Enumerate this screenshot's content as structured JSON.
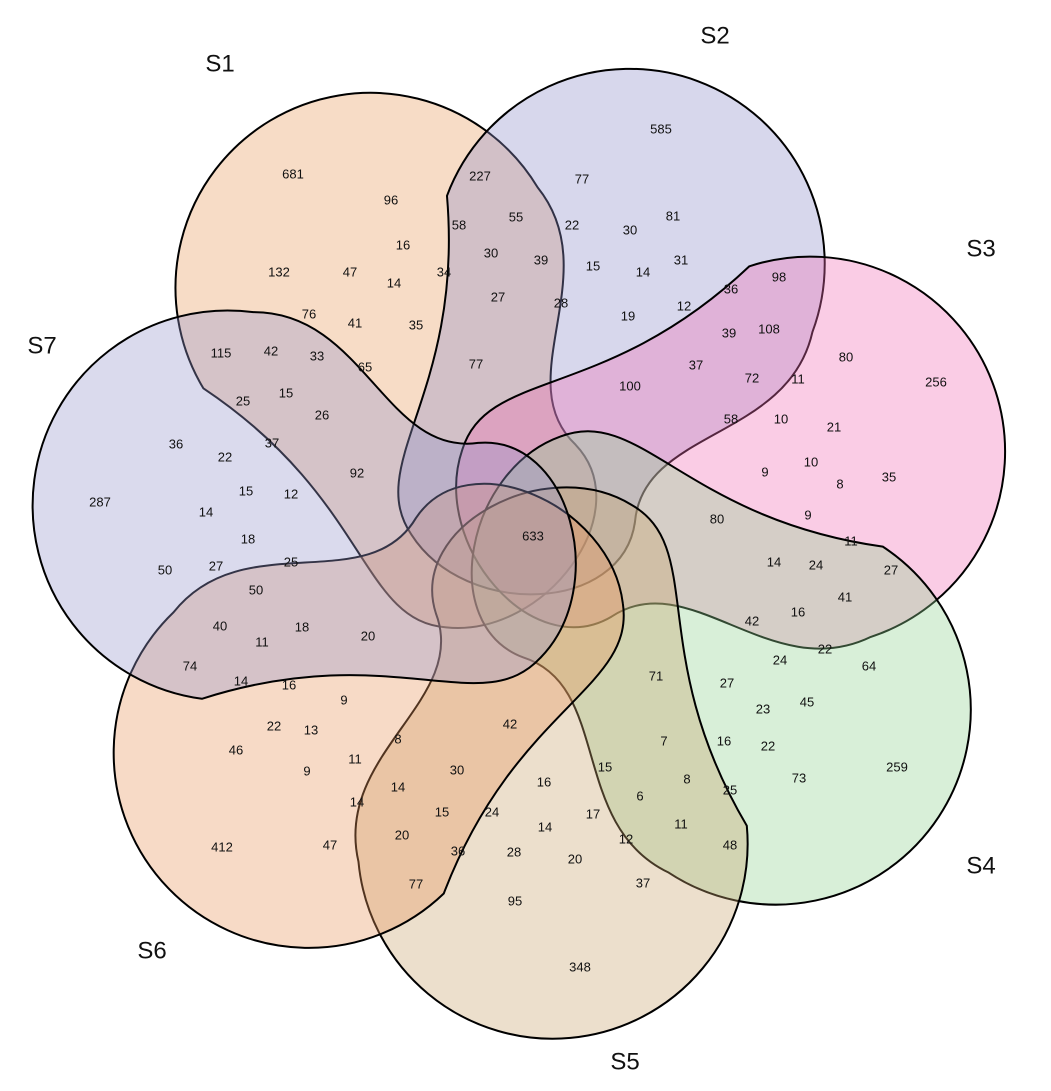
{
  "sets": [
    {
      "label": "S1",
      "color": "#e89a5c"
    },
    {
      "label": "S2",
      "color": "#8c8cc8"
    },
    {
      "label": "S3",
      "color": "#f06cb4"
    },
    {
      "label": "S4",
      "color": "#90d090"
    },
    {
      "label": "S5",
      "color": "#c8a46c"
    },
    {
      "label": "S6",
      "color": "#e8965c"
    },
    {
      "label": "S7",
      "color": "#9494cc"
    }
  ],
  "counts": [
    681,
    585,
    256,
    259,
    348,
    412,
    287,
    633,
    227,
    77,
    96,
    81,
    55,
    22,
    30,
    58,
    16,
    30,
    39,
    15,
    14,
    31,
    98,
    132,
    47,
    34,
    14,
    27,
    28,
    36,
    12,
    19,
    76,
    41,
    35,
    39,
    108,
    80,
    115,
    42,
    33,
    65,
    77,
    37,
    72,
    11,
    100,
    25,
    15,
    26,
    58,
    10,
    21,
    36,
    37,
    22,
    92,
    10,
    9,
    35,
    8,
    15,
    12,
    14,
    9,
    11,
    80,
    18,
    50,
    27,
    25,
    14,
    24,
    27,
    50,
    41,
    40,
    18,
    11,
    20,
    16,
    42,
    22,
    24,
    64,
    74,
    71,
    14,
    16,
    9,
    27,
    45,
    23,
    22,
    13,
    42,
    8,
    7,
    16,
    22,
    46,
    9,
    11,
    30,
    15,
    16,
    8,
    73,
    14,
    6,
    25,
    14,
    24,
    15,
    17,
    11,
    20,
    14,
    12,
    48,
    47,
    36,
    28,
    20,
    37,
    77,
    95
  ]
}
